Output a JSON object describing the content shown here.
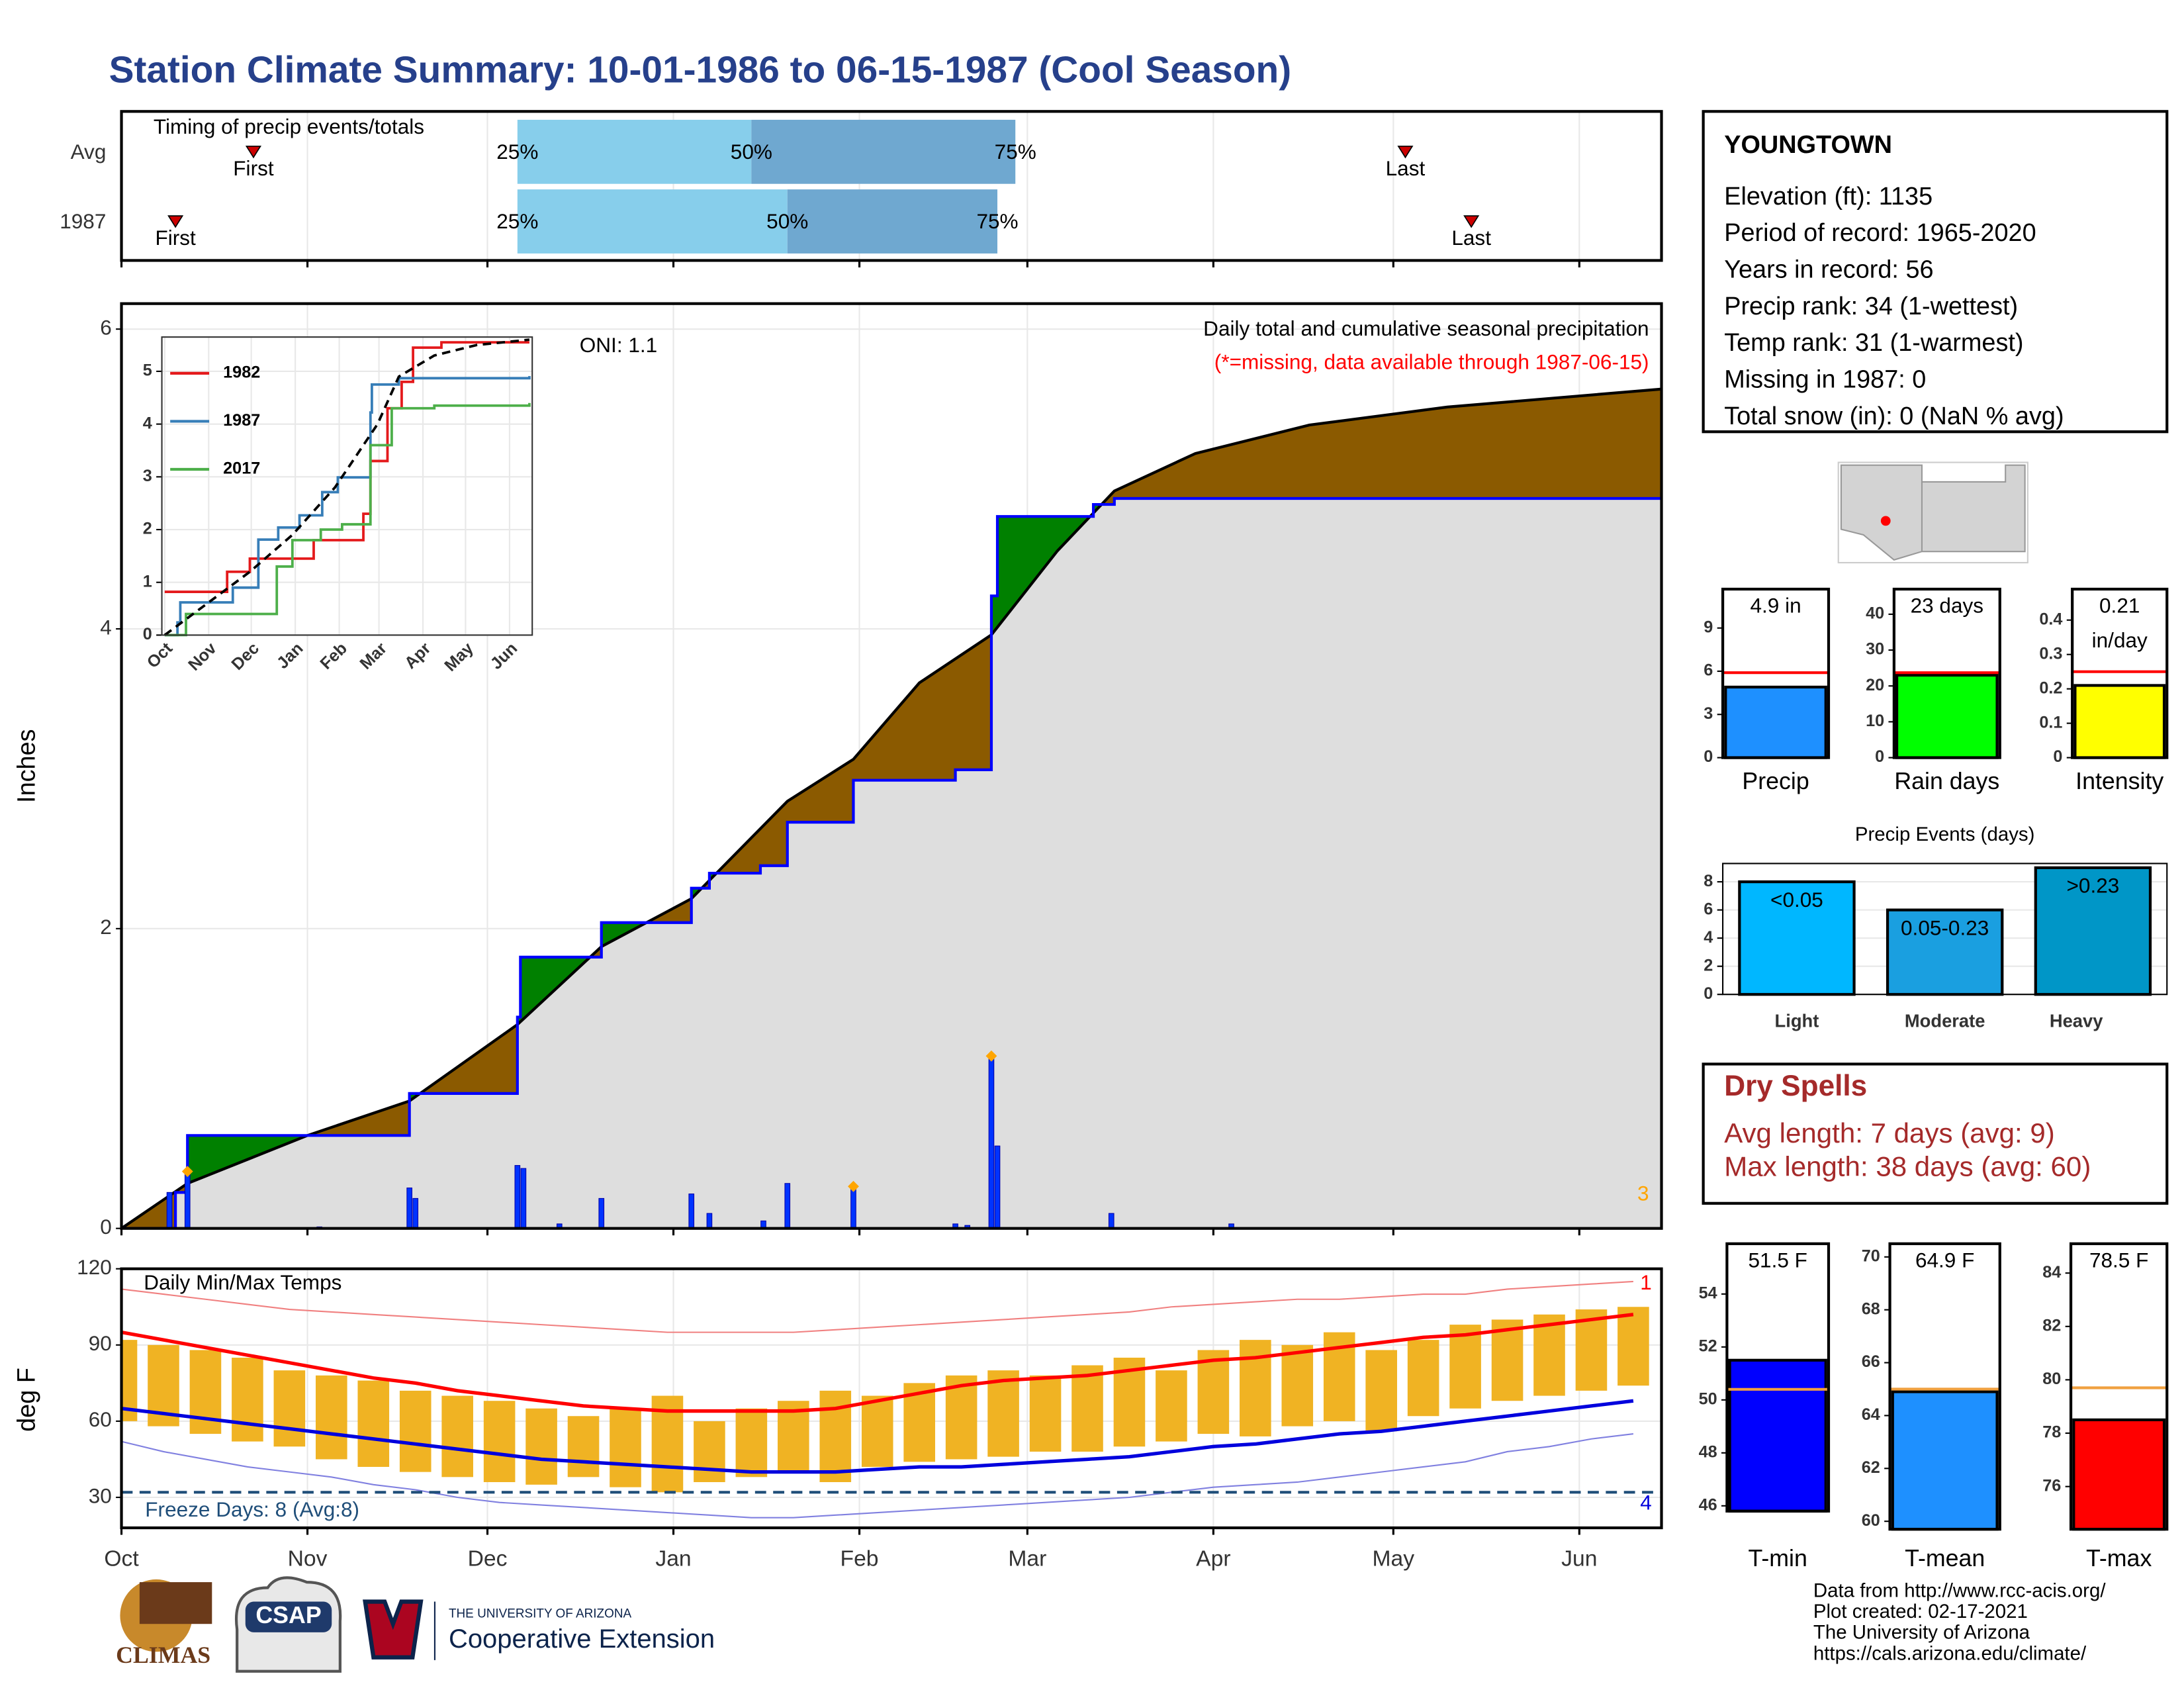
{
  "title": "Station Climate Summary: 10-01-1986 to 06-15-1987 (Cool Season)",
  "station": {
    "name": "YOUNGTOWN",
    "lines": [
      "Elevation (ft): 1135",
      "Period of record: 1965-2020",
      "Years in record: 56",
      "Precip rank: 34 (1-wettest)",
      "Temp rank: 31 (1-warmest)",
      "Missing in 1987: 0",
      "Total snow (in): 0 (NaN % avg)"
    ]
  },
  "dry_spells": {
    "title": "Dry Spells",
    "lines": [
      "Avg length: 7 days (avg: 9)",
      "Max length: 38 days (avg: 60)"
    ]
  },
  "logos": {
    "climas": "CLIMAS",
    "csap": "CSAP",
    "university": "THE UNIVERSITY OF ARIZONA",
    "extension": "Cooperative Extension"
  },
  "footer": {
    "lines": [
      "Data from http://www.rcc-acis.org/",
      "Plot created: 02-17-2021",
      "The University of Arizona",
      "https://cals.arizona.edu/climate/"
    ]
  },
  "chart_data": [
    {
      "type": "timing",
      "title": "Timing of precip events/totals",
      "labels": [
        "First",
        "25%",
        "50%",
        "75%",
        "Last"
      ],
      "colors": [
        "#87ceeb",
        "#6fa8d0"
      ],
      "marker_color": "#cc0000",
      "xlim": [
        0,
        256.7
      ],
      "rows": [
        {
          "name": "Avg",
          "first": 22,
          "q25": 66,
          "q50": 105,
          "q75": 149,
          "last": 214
        },
        {
          "name": "1987",
          "first": 9,
          "q25": 66,
          "q50": 111,
          "q75": 146,
          "last": 225
        }
      ]
    },
    {
      "type": "area",
      "ylabel": "Inches",
      "oni": "ONI: 1.1",
      "subtitle": "Daily total and cumulative seasonal precipitation",
      "note": "(*=missing, data available through 1987-06-15)",
      "record_count": 3,
      "xlim": [
        0,
        256.7
      ],
      "ylim": [
        0,
        6.17
      ],
      "yticks": [
        0,
        2,
        4,
        6
      ],
      "grid": true,
      "above_color": "#008000",
      "below_color": "#8b5a00",
      "fill_color": "#dedede",
      "series": [
        {
          "color": "#0000ff",
          "x": [
            0,
            9,
            11,
            48,
            66,
            66.5,
            80,
            95,
            98,
            106.5,
            111,
            122,
            139,
            145,
            146,
            162,
            165.5,
            256.7
          ],
          "values": [
            0,
            0.24,
            0.62,
            0.9,
            1.41,
            1.81,
            2.04,
            2.27,
            2.37,
            2.42,
            2.71,
            2.99,
            3.06,
            4.22,
            4.75,
            4.83,
            4.87,
            4.91
          ]
        },
        {
          "color": "#000000",
          "x": [
            0,
            11,
            31,
            48,
            66,
            80,
            95,
            111,
            122,
            133,
            145,
            156,
            165.5,
            179,
            198,
            221,
            256.7
          ],
          "values": [
            0,
            0.3,
            0.62,
            0.85,
            1.36,
            1.88,
            2.2,
            2.85,
            3.13,
            3.64,
            3.96,
            4.52,
            4.92,
            5.17,
            5.36,
            5.48,
            5.6
          ]
        }
      ],
      "daily": {
        "color": "#0033ff",
        "x": [
          8,
          11,
          33,
          48,
          49,
          66,
          67,
          73,
          80,
          95,
          98,
          107,
          111,
          122,
          139,
          141,
          145,
          146,
          165,
          185
        ],
        "values": [
          0.24,
          0.38,
          0.01,
          0.27,
          0.2,
          0.42,
          0.4,
          0.03,
          0.2,
          0.23,
          0.1,
          0.05,
          0.3,
          0.28,
          0.03,
          0.02,
          1.15,
          0.55,
          0.1,
          0.03
        ]
      },
      "markers": {
        "color": "#ffa500",
        "x": [
          11,
          122,
          145
        ],
        "values": [
          0.38,
          0.28,
          1.15
        ]
      }
    },
    {
      "type": "line",
      "xlim": [
        -2,
        259
      ],
      "ylim": [
        0,
        5.65
      ],
      "yticks": [
        0,
        1,
        2,
        3,
        4,
        5
      ],
      "xticks": [
        {
          "value": 0,
          "label": "Oct"
        },
        {
          "value": 31,
          "label": "Nov"
        },
        {
          "value": 61,
          "label": "Dec"
        },
        {
          "value": 92,
          "label": "Jan"
        },
        {
          "value": 123,
          "label": "Feb"
        },
        {
          "value": 151,
          "label": "Mar"
        },
        {
          "value": 182,
          "label": "Apr"
        },
        {
          "value": 212,
          "label": "May"
        },
        {
          "value": 243,
          "label": "Jun"
        }
      ],
      "series": [
        {
          "name": "1982",
          "color": "#e41a1c",
          "x": [
            0,
            44,
            60,
            105,
            140,
            145,
            157,
            167,
            175,
            195,
            257
          ],
          "values": [
            0.82,
            1.2,
            1.45,
            1.8,
            2.3,
            3.3,
            4.3,
            4.8,
            5.45,
            5.55,
            5.55
          ]
        },
        {
          "name": "1987",
          "color": "#377eb8",
          "x": [
            0,
            9,
            11,
            48,
            66,
            80,
            95,
            111,
            122,
            145,
            146,
            165,
            257
          ],
          "values": [
            0,
            0.24,
            0.62,
            0.9,
            1.81,
            2.04,
            2.27,
            2.71,
            2.99,
            4.22,
            4.75,
            4.87,
            4.91
          ]
        },
        {
          "name": "2017",
          "color": "#4daf4a",
          "x": [
            0,
            15,
            60,
            79,
            90,
            110,
            125,
            145,
            160,
            190,
            257
          ],
          "values": [
            0,
            0.4,
            0.4,
            1.3,
            1.8,
            2.0,
            2.1,
            3.6,
            4.3,
            4.35,
            4.4
          ]
        },
        {
          "color": "#000000",
          "dashed": true,
          "x": [
            0,
            30,
            60,
            90,
            120,
            150,
            165,
            190,
            220,
            257
          ],
          "values": [
            0,
            0.6,
            1.2,
            1.9,
            2.8,
            4.0,
            4.9,
            5.3,
            5.5,
            5.6
          ]
        }
      ]
    },
    {
      "type": "temperature",
      "title": "Daily Min/Max Temps",
      "ylabel": "deg F",
      "freeze_label": "Freeze Days: 8 (Avg:8)",
      "freeze": 32,
      "record_high_count": 1,
      "record_low_count": 4,
      "xlim": [
        0,
        256.7
      ],
      "ylim": [
        18,
        120
      ],
      "yticks": [
        30,
        60,
        90,
        120
      ],
      "grid": true,
      "xticks": [
        {
          "value": 0,
          "label": "Oct"
        },
        {
          "value": 31,
          "label": "Nov"
        },
        {
          "value": 61,
          "label": "Dec"
        },
        {
          "value": 92,
          "label": "Jan"
        },
        {
          "value": 123,
          "label": "Feb"
        },
        {
          "value": 151,
          "label": "Mar"
        },
        {
          "value": 182,
          "label": "Apr"
        },
        {
          "value": 212,
          "label": "May"
        },
        {
          "value": 243,
          "label": "Jun"
        }
      ],
      "x": [
        0,
        7,
        14,
        21,
        28,
        35,
        42,
        49,
        56,
        63,
        70,
        77,
        84,
        91,
        98,
        105,
        112,
        119,
        126,
        133,
        140,
        147,
        154,
        161,
        168,
        175,
        182,
        189,
        196,
        203,
        210,
        217,
        224,
        231,
        238,
        245,
        252
      ],
      "bars": {
        "color": "#f0b323",
        "high": [
          92,
          90,
          88,
          85,
          80,
          78,
          76,
          72,
          70,
          68,
          65,
          62,
          65,
          70,
          60,
          65,
          68,
          72,
          70,
          75,
          78,
          80,
          78,
          82,
          85,
          80,
          88,
          92,
          90,
          95,
          88,
          92,
          98,
          100,
          102,
          104,
          105
        ],
        "low": [
          60,
          58,
          55,
          52,
          50,
          45,
          42,
          40,
          38,
          36,
          35,
          38,
          34,
          32,
          36,
          38,
          40,
          36,
          42,
          44,
          45,
          46,
          48,
          48,
          50,
          52,
          55,
          54,
          58,
          60,
          56,
          62,
          65,
          68,
          70,
          72,
          74
        ]
      },
      "lines": [
        {
          "color": "#ff0000",
          "values": [
            95,
            92,
            89,
            86,
            83,
            80,
            77,
            75,
            72,
            70,
            68,
            66,
            65,
            64,
            64,
            64,
            64,
            65,
            68,
            71,
            74,
            76,
            77,
            78,
            80,
            82,
            84,
            85,
            87,
            89,
            91,
            93,
            94,
            96,
            98,
            100,
            102
          ]
        },
        {
          "color": "#0000dd",
          "values": [
            65,
            63,
            61,
            59,
            57,
            55,
            53,
            51,
            49,
            47,
            45,
            44,
            43,
            42,
            41,
            40,
            40,
            40,
            41,
            42,
            42,
            43,
            44,
            45,
            46,
            48,
            50,
            51,
            53,
            55,
            56,
            58,
            60,
            62,
            64,
            66,
            68
          ]
        },
        {
          "color": "#f08080",
          "thin": true,
          "values": [
            112,
            110,
            108,
            106,
            104,
            103,
            102,
            101,
            100,
            99,
            98,
            97,
            96,
            95,
            95,
            95,
            95,
            96,
            97,
            98,
            99,
            100,
            101,
            102,
            103,
            105,
            106,
            107,
            108,
            108,
            109,
            110,
            110,
            112,
            113,
            114,
            115
          ]
        },
        {
          "color": "#8080e0",
          "thin": true,
          "values": [
            52,
            48,
            45,
            42,
            40,
            38,
            35,
            33,
            30,
            28,
            27,
            26,
            25,
            24,
            23,
            22,
            22,
            23,
            24,
            25,
            26,
            27,
            28,
            29,
            30,
            32,
            34,
            35,
            36,
            38,
            40,
            42,
            44,
            48,
            50,
            53,
            55
          ]
        }
      ]
    },
    {
      "type": "bar",
      "categories": [
        "Precip"
      ],
      "values": [
        4.9
      ],
      "value_labels": [
        "4.9 in"
      ],
      "colors": [
        "#1e90ff"
      ],
      "average": 5.9,
      "average_color": "#ff0000",
      "ylim": [
        0,
        11.7
      ],
      "yticks": [
        0,
        3,
        6,
        9
      ]
    },
    {
      "type": "bar",
      "categories": [
        "Rain days"
      ],
      "values": [
        23
      ],
      "value_labels": [
        "23 days"
      ],
      "colors": [
        "#00ff00"
      ],
      "average": 23.7,
      "average_color": "#ff0000",
      "ylim": [
        0,
        47
      ],
      "yticks": [
        0,
        10,
        20,
        30,
        40
      ]
    },
    {
      "type": "bar",
      "categories": [
        "Intensity"
      ],
      "values": [
        0.21
      ],
      "value_labels": [
        "0.21 in/day"
      ],
      "colors": [
        "#ffff00"
      ],
      "average": 0.25,
      "average_color": "#ff0000",
      "ylim": [
        0,
        0.49
      ],
      "yticks": [
        0.0,
        0.1,
        0.2,
        0.3,
        0.4
      ]
    },
    {
      "type": "bar",
      "title": "Precip Events (days)",
      "categories": [
        "Light",
        "Moderate",
        "Heavy"
      ],
      "values": [
        8,
        6,
        9
      ],
      "value_labels": [
        "<0.05",
        "0.05-0.23",
        ">0.23"
      ],
      "colors": [
        "#00b7ff",
        "#1a9fe0",
        "#0096c7"
      ],
      "ylim": [
        0,
        9.3
      ],
      "yticks": [
        0,
        2,
        4,
        6,
        8
      ]
    },
    {
      "type": "bar",
      "categories": [
        "T-min"
      ],
      "values": [
        51.5
      ],
      "value_labels": [
        "51.5 F"
      ],
      "colors": [
        "#0000ff"
      ],
      "average": 50.4,
      "average_color": "#f0a040",
      "ylim": [
        45.8,
        55.9
      ],
      "yticks": [
        46,
        48,
        50,
        52,
        54
      ]
    },
    {
      "type": "bar",
      "categories": [
        "T-mean"
      ],
      "values": [
        64.9
      ],
      "value_labels": [
        "64.9 F"
      ],
      "colors": [
        "#1e90ff"
      ],
      "average": 65.0,
      "average_color": "#f0a040",
      "ylim": [
        59.7,
        70.5
      ],
      "yticks": [
        60,
        62,
        64,
        66,
        68,
        70
      ]
    },
    {
      "type": "bar",
      "categories": [
        "T-max"
      ],
      "values": [
        78.5
      ],
      "value_labels": [
        "78.5 F"
      ],
      "colors": [
        "#ff0000"
      ],
      "average": 79.7,
      "average_color": "#f0a040",
      "ylim": [
        74.4,
        85.1
      ],
      "yticks": [
        76,
        78,
        80,
        82,
        84
      ]
    }
  ]
}
